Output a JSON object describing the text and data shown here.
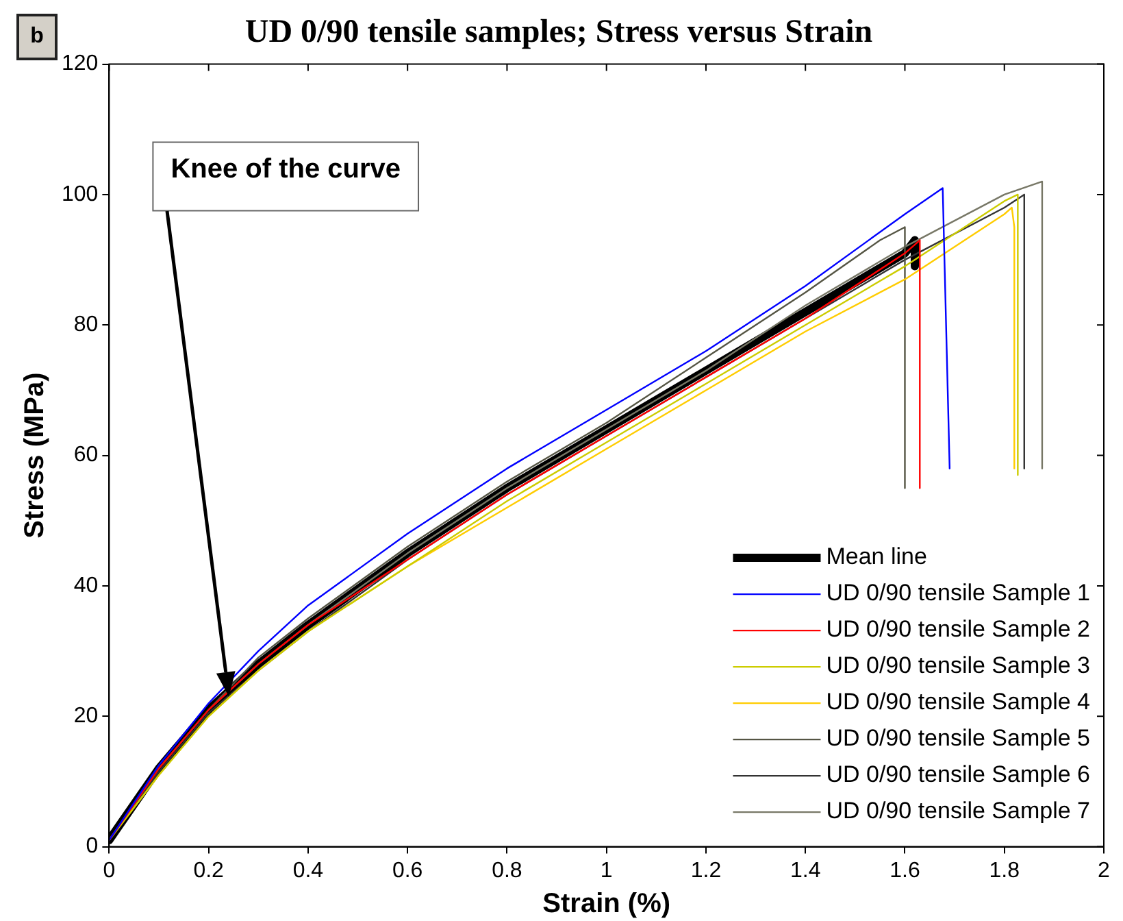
{
  "chart_data": {
    "type": "line",
    "title": "UD 0/90 tensile samples; Stress versus Strain",
    "xlabel": "Strain (%)",
    "ylabel": "Stress (MPa)",
    "xlim": [
      0,
      2
    ],
    "xticks": [
      0,
      0.2,
      0.4,
      0.6,
      0.8,
      1,
      1.2,
      1.4,
      1.6,
      1.8,
      2
    ],
    "ylim": [
      0,
      120
    ],
    "yticks": [
      0,
      20,
      40,
      60,
      80,
      100,
      120
    ],
    "grid": false,
    "legend": "bottom right",
    "marker": "none",
    "line_style": "solid",
    "annotations": [
      "b",
      "Knee of the curve"
    ],
    "series": [
      {
        "name": "Mean line",
        "color": "#000000",
        "x": [
          0,
          0.1,
          0.2,
          0.3,
          0.4,
          0.6,
          0.8,
          1.0,
          1.2,
          1.4,
          1.6,
          1.62,
          1.62
        ],
        "values": [
          1,
          12,
          21,
          28,
          34,
          45,
          55,
          64,
          73,
          82,
          91,
          93,
          89
        ]
      },
      {
        "name": "UD 0/90 tensile Sample 1",
        "color": "#0000ff",
        "x": [
          0,
          0.1,
          0.2,
          0.3,
          0.4,
          0.6,
          0.8,
          1.0,
          1.2,
          1.4,
          1.6,
          1.676,
          1.69
        ],
        "values": [
          1,
          12.5,
          22,
          30,
          37,
          48,
          58,
          67,
          76,
          86,
          97,
          101,
          58
        ]
      },
      {
        "name": "UD 0/90 tensile Sample 2",
        "color": "#ff0000",
        "x": [
          0,
          0.1,
          0.2,
          0.3,
          0.4,
          0.6,
          0.8,
          1.0,
          1.2,
          1.4,
          1.6,
          1.63,
          1.63
        ],
        "values": [
          1,
          12,
          21,
          28,
          34,
          44,
          54,
          63,
          72,
          81,
          91,
          93,
          55
        ]
      },
      {
        "name": "UD 0/90 tensile Sample 3",
        "color": "#cccc00",
        "x": [
          0,
          0.1,
          0.2,
          0.3,
          0.4,
          0.6,
          0.8,
          1.0,
          1.2,
          1.4,
          1.6,
          1.8,
          1.827,
          1.827
        ],
        "values": [
          1,
          11,
          20,
          27,
          33,
          43,
          53,
          62,
          71,
          80,
          89,
          99,
          100,
          57
        ]
      },
      {
        "name": "UD 0/90 tensile Sample 4",
        "color": "#ffcc00",
        "x": [
          0,
          0.1,
          0.2,
          0.3,
          0.4,
          0.6,
          0.8,
          1.0,
          1.2,
          1.4,
          1.6,
          1.8,
          1.815,
          1.82,
          1.82
        ],
        "values": [
          1,
          11,
          20,
          27,
          33,
          43,
          52,
          61,
          70,
          79,
          87,
          97,
          98,
          95,
          58
        ]
      },
      {
        "name": "UD 0/90 tensile Sample 5",
        "color": "#555544",
        "x": [
          0,
          0.1,
          0.2,
          0.3,
          0.4,
          0.6,
          0.8,
          1.0,
          1.2,
          1.4,
          1.55,
          1.6,
          1.6
        ],
        "values": [
          1,
          12,
          21,
          29,
          35,
          46,
          56,
          65,
          75,
          85,
          93,
          95,
          55
        ]
      },
      {
        "name": "UD 0/90 tensile Sample 6",
        "color": "#333333",
        "x": [
          0,
          0.1,
          0.2,
          0.3,
          0.4,
          0.6,
          0.8,
          1.0,
          1.2,
          1.4,
          1.6,
          1.8,
          1.84,
          1.84
        ],
        "values": [
          1,
          11.5,
          20.5,
          27,
          33,
          44,
          54,
          63,
          72,
          81,
          90,
          98,
          100,
          58
        ]
      },
      {
        "name": "UD 0/90 tensile Sample 7",
        "color": "#777766",
        "x": [
          0,
          0.1,
          0.2,
          0.3,
          0.4,
          0.6,
          0.8,
          1.0,
          1.2,
          1.4,
          1.6,
          1.8,
          1.876,
          1.876
        ],
        "values": [
          1,
          12,
          21,
          28,
          34,
          45,
          55,
          64,
          73,
          83,
          92,
          100,
          102,
          58
        ]
      }
    ]
  }
}
